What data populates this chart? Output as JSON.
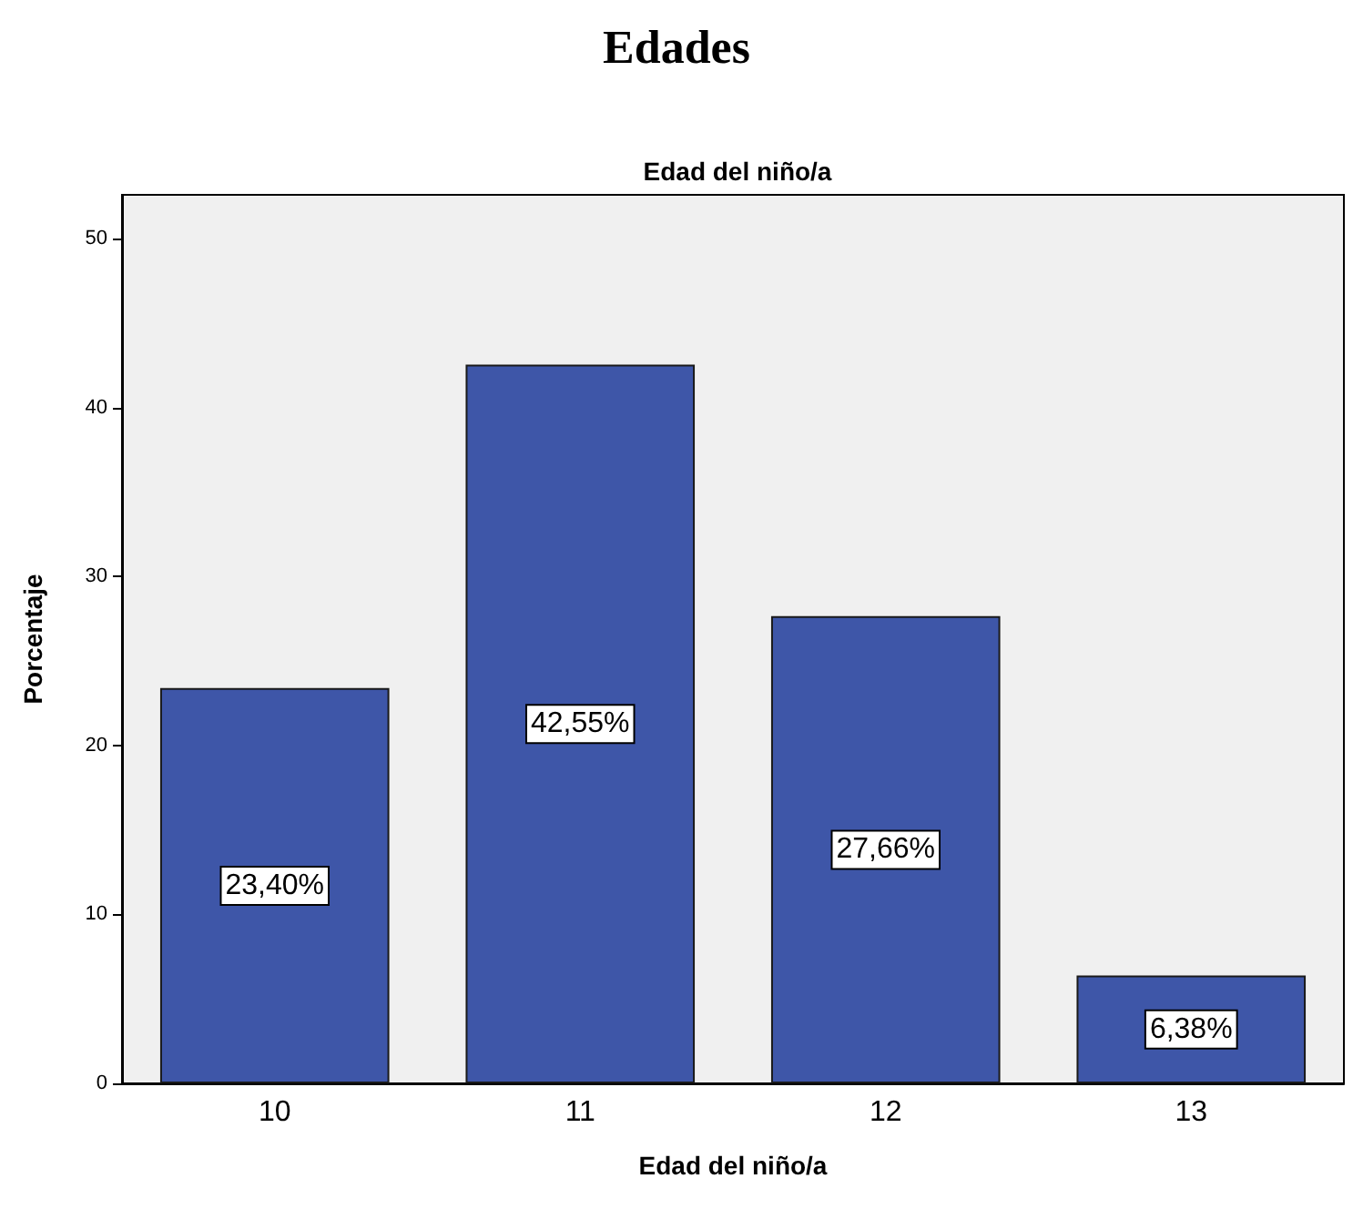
{
  "chart_data": {
    "type": "bar",
    "title": "Edades",
    "subtitle": "Edad del niño/a",
    "xlabel": "Edad del niño/a",
    "ylabel": "Porcentaje",
    "categories": [
      "10",
      "11",
      "12",
      "13"
    ],
    "values": [
      23.4,
      42.55,
      27.66,
      6.38
    ],
    "value_labels": [
      "23,40%",
      "42,55%",
      "27,66%",
      "6,38%"
    ],
    "color": "#3e56a8",
    "ylim": [
      0,
      52.6
    ],
    "yticks": [
      0,
      10,
      20,
      30,
      40,
      50
    ],
    "grid": false
  }
}
